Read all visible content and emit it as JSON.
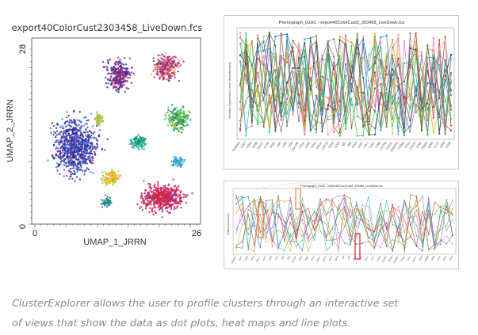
{
  "umap": {
    "title": "export40ColorCust2303458_LiveDown.fcs",
    "x_axis_label": "UMAP_1_JRRN",
    "y_axis_label": "UMAP_2_JRRN",
    "x_min_label": "0",
    "x_max_label": "26",
    "y_min_label": "0",
    "y_max_label": "28",
    "cluster_colors": [
      "#2b2f8f",
      "#7d2a8f",
      "#c0297a",
      "#1f8a5a",
      "#2ec4b6",
      "#d62839",
      "#f4a261",
      "#3a86ff",
      "#8ac926",
      "#ff006e",
      "#6a4c93",
      "#ffbe0b"
    ]
  },
  "pheno_top": {
    "title": "Phenograph_G16C - export40ColorCust2_303458_LiveDown.fcs",
    "ylabel": "Relative Expression Level (transformed)",
    "marker_labels": [
      "CD45RA",
      "CD27",
      "CD28",
      "CD38",
      "CD127",
      "CCR7",
      "CD25",
      "CD4",
      "CD8",
      "CD3",
      "HLA-DR",
      "CD16",
      "CD56",
      "CD14",
      "CD11c",
      "CD123",
      "CD19",
      "CD20",
      "IgD",
      "IgM",
      "CD24",
      "CD57",
      "PD-1",
      "TIGIT",
      "CD95",
      "CXCR5",
      "CD161",
      "CD45RO",
      "TCRgd",
      "CD1c",
      "CD141",
      "CD33",
      "CD66b",
      "CD86",
      "Ki-67",
      "CD69",
      "CD39"
    ]
  },
  "pheno_bottom": {
    "title": "Phenograph_G16C - export40ColorCust2_303458_LiveDown.fcs",
    "ylabel": "Relative Expression"
  },
  "caption": {
    "line1": "ClusterExplorer allows the user to profile clusters through an interactive set",
    "line2": "of views that show the data as dot plots, heat maps and line plots."
  },
  "colors": {
    "series": [
      "#2ecc40",
      "#1f77b4",
      "#ff7f0e",
      "#d62728",
      "#9467bd",
      "#8c564b",
      "#e377c2",
      "#17becf",
      "#bcbd22",
      "#7f7f7f",
      "#a6d854",
      "#ff9896",
      "#393b79",
      "#637939"
    ],
    "highlight_box": "#e8823a",
    "highlight_box_red": "#d62728",
    "caption": "#7f8c98"
  }
}
